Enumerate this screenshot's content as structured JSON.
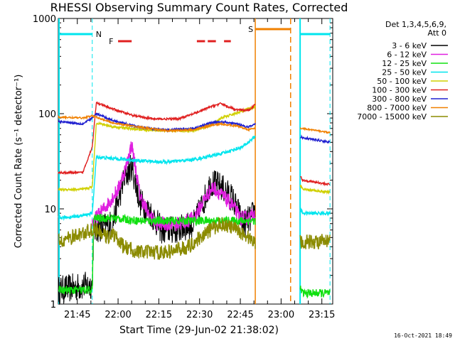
{
  "chart_data": {
    "type": "line",
    "title": "RHESSI Observing Summary Count Rates, Corrected",
    "xlabel": "Start Time (29-Jun-02 21:38:02)",
    "ylabel": "Corrected Count Rate (s⁻¹ detector⁻¹)",
    "y_scale": "log",
    "ylim": [
      1,
      1000
    ],
    "xlim_minutes": [
      0,
      101
    ],
    "x_ticks": [
      {
        "label": "21:45",
        "minute": 7
      },
      {
        "label": "22:00",
        "minute": 22
      },
      {
        "label": "22:15",
        "minute": 37
      },
      {
        "label": "22:30",
        "minute": 52
      },
      {
        "label": "22:45",
        "minute": 67
      },
      {
        "label": "23:00",
        "minute": 82
      },
      {
        "label": "23:15",
        "minute": 97
      }
    ],
    "y_ticks": [
      {
        "label": "1",
        "value": 1
      },
      {
        "label": "10",
        "value": 10
      },
      {
        "label": "100",
        "value": 100
      },
      {
        "label": "1000",
        "value": 1000
      }
    ],
    "legend": {
      "position": "right",
      "header": [
        "Det 1,3,4,5,6,9,",
        "Att 0"
      ]
    },
    "series": [
      {
        "name": "3 - 6 keV",
        "color": "#000000",
        "x": [
          0,
          12.5,
          13,
          20,
          24,
          27,
          30,
          34,
          38,
          44,
          50,
          54,
          56,
          60,
          64,
          68,
          71,
          72.5,
          73
        ],
        "y": [
          1.4,
          1.6,
          6,
          7,
          20,
          28,
          12,
          9,
          6,
          6,
          7,
          13,
          19,
          17,
          13,
          7,
          8,
          10,
          18
        ]
      },
      {
        "name": "6 - 12 keV",
        "color": "#e020e0",
        "x": [
          12.5,
          13,
          18,
          22,
          25,
          27,
          30,
          33,
          36,
          40,
          45,
          50,
          54,
          57,
          60,
          64,
          67,
          70,
          72.5
        ],
        "y": [
          7,
          7.5,
          11,
          16,
          28,
          48,
          14,
          9,
          7,
          7,
          7,
          8,
          13,
          17,
          14,
          11,
          8,
          8,
          9
        ]
      },
      {
        "name": "12 - 25 keV",
        "color": "#10e010",
        "x": [
          0,
          12.5,
          13,
          20,
          30,
          40,
          50,
          60,
          72.5,
          90,
          100
        ],
        "y": [
          1.4,
          1.4,
          8,
          8,
          7.5,
          7.5,
          7.5,
          7.5,
          7.5,
          1.3,
          1.3
        ]
      },
      {
        "name": "25 - 50 keV",
        "color": "#00e5ee",
        "x": [
          0,
          9,
          12.5,
          14,
          20,
          30,
          40,
          50,
          60,
          68,
          72.5,
          90,
          100
        ],
        "y": [
          8,
          8.5,
          9,
          35,
          34,
          32,
          31,
          33,
          38,
          45,
          58,
          9,
          9
        ]
      },
      {
        "name": "50 - 100 keV",
        "color": "#d0d000",
        "x": [
          0,
          9,
          12.5,
          14,
          20,
          30,
          40,
          50,
          56,
          60,
          65,
          70,
          72.5,
          90,
          100
        ],
        "y": [
          16,
          16,
          17,
          80,
          73,
          68,
          66,
          67,
          75,
          90,
          100,
          112,
          118,
          16,
          15
        ]
      },
      {
        "name": "100 - 300 keV",
        "color": "#e02020",
        "x": [
          0,
          9,
          12.5,
          14,
          20,
          28,
          35,
          44,
          50,
          56,
          60,
          65,
          70,
          72.5,
          90,
          100
        ],
        "y": [
          24,
          24,
          45,
          130,
          112,
          95,
          88,
          88,
          100,
          118,
          128,
          110,
          108,
          125,
          20,
          18
        ]
      },
      {
        "name": "300 - 800 keV",
        "color": "#2020d0",
        "x": [
          0,
          9,
          12.5,
          14,
          20,
          30,
          40,
          50,
          56,
          60,
          66,
          70,
          72.5,
          90,
          100
        ],
        "y": [
          83,
          78,
          90,
          100,
          85,
          72,
          67,
          70,
          80,
          82,
          78,
          72,
          78,
          56,
          50
        ]
      },
      {
        "name": "800 - 7000 keV",
        "color": "#f08000",
        "x": [
          0,
          9,
          12.5,
          14,
          20,
          30,
          40,
          50,
          56,
          60,
          66,
          70,
          72.5,
          90,
          100
        ],
        "y": [
          92,
          90,
          95,
          92,
          80,
          72,
          66,
          68,
          75,
          78,
          74,
          68,
          70,
          70,
          63
        ]
      },
      {
        "name": "7000 - 15000 keV",
        "color": "#8b8b00",
        "x": [
          0,
          9,
          12.5,
          14,
          18,
          20,
          24,
          30,
          40,
          48,
          52,
          56,
          60,
          66,
          70,
          72.5,
          90,
          100
        ],
        "y": [
          4.5,
          5.5,
          6,
          6,
          5,
          5.5,
          4,
          3.5,
          3.5,
          4,
          5,
          6,
          7,
          6,
          5,
          4.5,
          4.5,
          4.5
        ]
      }
    ],
    "event_markers": [
      {
        "label": "N",
        "color": "#00e5ee",
        "x": [
          0,
          12.5
        ]
      },
      {
        "label": "F",
        "color": "#e02020",
        "x": [
          22,
          27
        ]
      },
      {
        "label": "S",
        "color": "#f08000",
        "x": [
          72.5,
          85.5
        ]
      }
    ],
    "flare_segments": [
      {
        "x": [
          22,
          27
        ]
      },
      {
        "x": [
          51,
          54
        ]
      },
      {
        "x": [
          55,
          58
        ]
      },
      {
        "x": [
          61,
          63.5
        ]
      }
    ],
    "extra_markers": [
      {
        "label": "",
        "color": "#00e5ee",
        "x": [
          89,
          100
        ]
      }
    ],
    "timestamp": "16-Oct-2021 18:49"
  }
}
